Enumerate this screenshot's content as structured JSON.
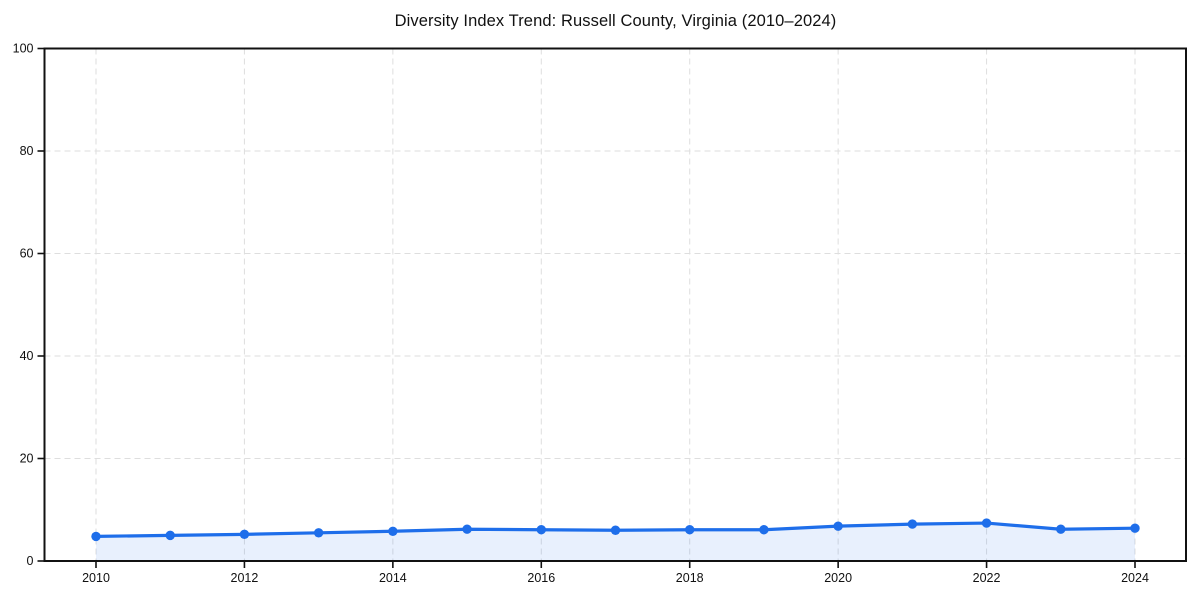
{
  "chart_data": {
    "type": "line",
    "title": "Diversity Index Trend: Russell County, Virginia (2010–2024)",
    "xlabel": "",
    "ylabel": "",
    "x": [
      2010,
      2011,
      2012,
      2013,
      2014,
      2015,
      2016,
      2017,
      2018,
      2019,
      2020,
      2021,
      2022,
      2023,
      2024
    ],
    "series": [
      {
        "name": "Diversity Index",
        "values": [
          4.8,
          5.0,
          5.2,
          5.5,
          5.8,
          6.2,
          6.1,
          6.0,
          6.1,
          6.1,
          6.8,
          7.2,
          7.4,
          6.2,
          6.4
        ]
      }
    ],
    "xticks": [
      2010,
      2012,
      2014,
      2016,
      2018,
      2020,
      2022,
      2024
    ],
    "yticks": [
      0,
      20,
      40,
      60,
      80,
      100
    ],
    "ylim": [
      0,
      100
    ],
    "grid": "dashed",
    "legend": "none",
    "area_fill": true,
    "colors": {
      "line": "#1e6eea",
      "marker": "#1e6eea",
      "area": "rgba(30, 110, 234, 0.10)",
      "grid": "#dedede",
      "spine": "#111111",
      "tick_text": "#111111",
      "background": "#ffffff"
    }
  }
}
